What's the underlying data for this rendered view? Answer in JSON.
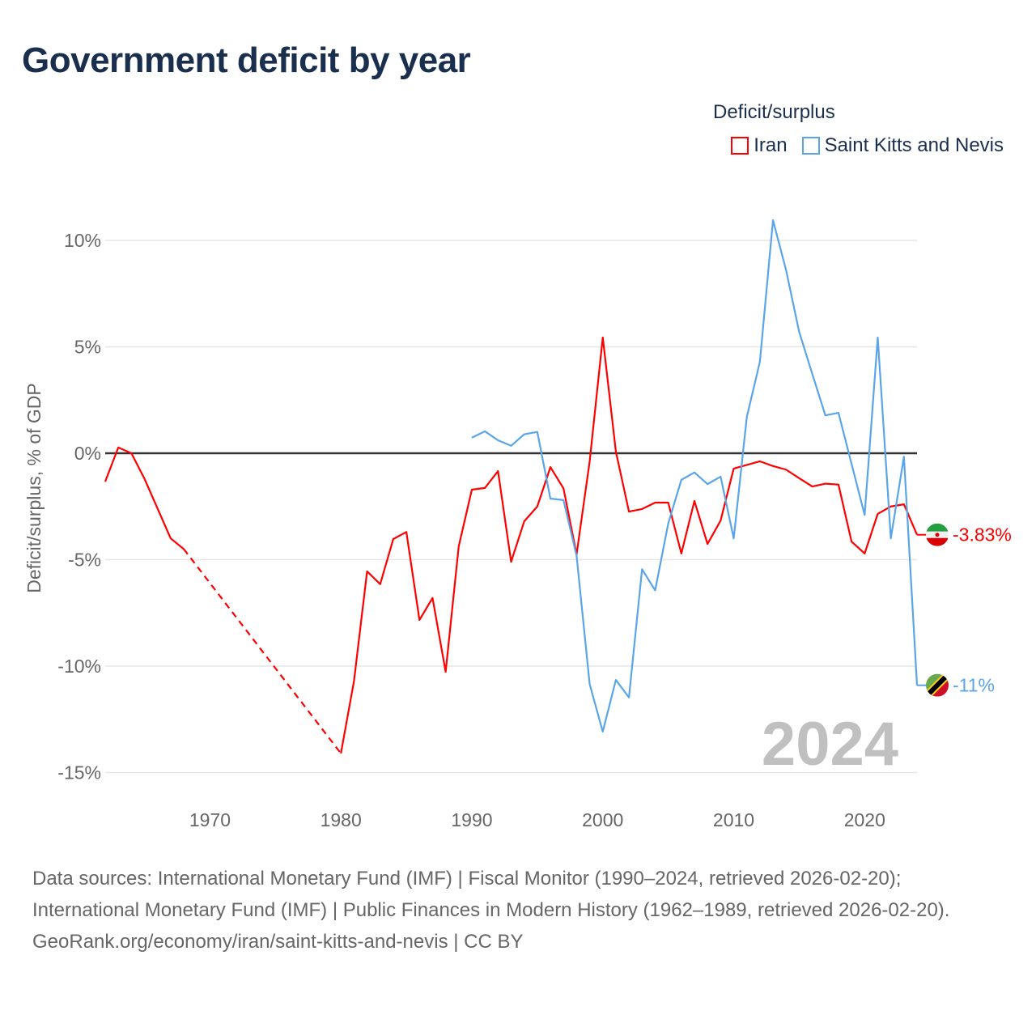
{
  "title": "Government deficit by year",
  "legend_title": "Deficit/surplus",
  "colors": {
    "iran": "#ff0000",
    "skn": "#5aa5ea",
    "text": "#1a2e4d",
    "axis": "#333333",
    "grid": "#e6e6e6",
    "watermark": "#c0c0c0"
  },
  "chart_data": {
    "type": "line",
    "title": "Government deficit by year",
    "xlabel": "",
    "ylabel": "Deficit/surplus, % of GDP",
    "xlim": [
      1962,
      2024
    ],
    "ylim": [
      -16,
      11
    ],
    "x_ticks": [
      1970,
      1980,
      1990,
      2000,
      2010,
      2020
    ],
    "y_ticks": [
      10,
      5,
      0,
      -5,
      -10,
      -15
    ],
    "y_tick_labels": [
      "10%",
      "5%",
      "0%",
      "-5%",
      "-10%",
      "-15%"
    ],
    "grid": true,
    "legend_position": "top-right",
    "watermark_year": "2024",
    "series": [
      {
        "name": "Iran",
        "key": "iran",
        "end_label": "-3.83%",
        "x": [
          1962,
          1963,
          1964,
          1965,
          1966,
          1967,
          1968,
          1980,
          1981,
          1982,
          1983,
          1984,
          1985,
          1986,
          1987,
          1988,
          1989,
          1990,
          1991,
          1992,
          1993,
          1994,
          1995,
          1996,
          1997,
          1998,
          1999,
          2000,
          2001,
          2002,
          2003,
          2004,
          2005,
          2006,
          2007,
          2008,
          2009,
          2010,
          2011,
          2012,
          2013,
          2014,
          2015,
          2016,
          2017,
          2018,
          2019,
          2020,
          2021,
          2022,
          2023,
          2024
        ],
        "values": [
          -1.33,
          0.27,
          0.0,
          -1.2,
          -2.6,
          -4.0,
          -4.5,
          -14.1,
          -10.7,
          -5.55,
          -6.15,
          -4.03,
          -3.7,
          -7.83,
          -6.8,
          -10.27,
          -4.37,
          -1.71,
          -1.63,
          -0.84,
          -5.1,
          -3.2,
          -2.5,
          -0.65,
          -1.65,
          -4.75,
          -0.38,
          5.44,
          0.08,
          -2.74,
          -2.62,
          -2.32,
          -2.32,
          -4.71,
          -2.24,
          -4.26,
          -3.16,
          -0.72,
          -0.55,
          -0.38,
          -0.6,
          -0.77,
          -1.17,
          -1.56,
          -1.43,
          -1.47,
          -4.15,
          -4.71,
          -2.85,
          -2.5,
          -2.4,
          -3.83
        ]
      },
      {
        "name": "Saint Kitts and Nevis",
        "key": "skn",
        "end_label": "-11%",
        "x": [
          1990,
          1991,
          1992,
          1993,
          1994,
          1995,
          1996,
          1997,
          1998,
          1999,
          2000,
          2001,
          2002,
          2003,
          2004,
          2005,
          2006,
          2007,
          2008,
          2009,
          2010,
          2011,
          2012,
          2013,
          2014,
          2015,
          2016,
          2017,
          2018,
          2019,
          2020,
          2021,
          2022,
          2023,
          2024
        ],
        "values": [
          0.73,
          1.03,
          0.61,
          0.35,
          0.89,
          1.0,
          -2.13,
          -2.2,
          -4.82,
          -10.85,
          -13.08,
          -10.65,
          -11.47,
          -5.45,
          -6.44,
          -3.3,
          -1.25,
          -0.9,
          -1.45,
          -1.1,
          -4.0,
          1.7,
          4.3,
          10.95,
          8.6,
          5.7,
          3.73,
          1.78,
          1.9,
          -0.5,
          -2.9,
          5.44,
          -4.0,
          -0.16,
          -10.9
        ]
      }
    ]
  },
  "footer": {
    "sources": "Data sources: International Monetary Fund (IMF) | Fiscal Monitor (1990–2024, retrieved 2026-02-20); International Monetary Fund (IMF) | Public Finances in Modern History (1962–1989, retrieved 2026-02-20).",
    "credit": "GeoRank.org/economy/iran/saint-kitts-and-nevis | CC BY"
  }
}
